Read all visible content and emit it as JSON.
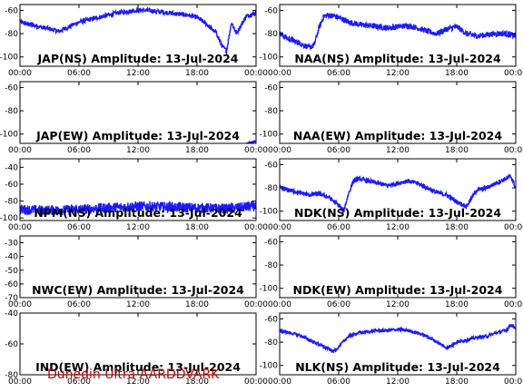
{
  "footer": "Dunedin Ultra AARDDVARK",
  "colors": {
    "series": "#1a1aff",
    "axis": "#000000",
    "footer": "#cc0000"
  },
  "chart_data": [
    {
      "type": "line",
      "title": "JAP(NS) Amplitude: 13-Jul-2024",
      "x_ticks": [
        "00:00",
        "06:00",
        "12:00",
        "18:00",
        "00:00"
      ],
      "xlim_hours": [
        0,
        24
      ],
      "ylim": [
        -108,
        -55
      ],
      "y_ticks": [
        -100,
        -80,
        -60
      ],
      "x": [
        0,
        1,
        2,
        3,
        4,
        5,
        6,
        7,
        8,
        9,
        10,
        11,
        12,
        13,
        14,
        15,
        16,
        17,
        18,
        19,
        20,
        20.5,
        21,
        21.5,
        22,
        23,
        24
      ],
      "y": [
        -70,
        -72,
        -74,
        -76,
        -78,
        -74,
        -70,
        -68,
        -66,
        -64,
        -62,
        -61,
        -60,
        -60,
        -61,
        -62,
        -63,
        -64,
        -66,
        -72,
        -80,
        -90,
        -95,
        -70,
        -80,
        -65,
        -62
      ],
      "band": 4
    },
    {
      "type": "line",
      "title": "NAA(NS) Amplitude: 13-Jul-2024",
      "x_ticks": [
        "00:00",
        "06:00",
        "12:00",
        "18:00",
        "00:00"
      ],
      "xlim_hours": [
        0,
        24
      ],
      "ylim": [
        -108,
        -55
      ],
      "y_ticks": [
        -100,
        -80,
        -60
      ],
      "x": [
        0,
        1,
        2,
        3,
        3.5,
        4,
        4.5,
        5,
        6,
        7,
        8,
        9,
        10,
        11,
        12,
        13,
        14,
        15,
        16,
        17,
        18,
        19,
        20,
        21,
        22,
        23,
        24
      ],
      "y": [
        -80,
        -85,
        -88,
        -92,
        -90,
        -75,
        -65,
        -64,
        -66,
        -70,
        -72,
        -73,
        -74,
        -75,
        -74,
        -73,
        -75,
        -78,
        -80,
        -76,
        -74,
        -80,
        -82,
        -81,
        -80,
        -80,
        -82
      ],
      "band": 5
    },
    {
      "type": "line",
      "title": "JAP(EW) Amplitude: 13-Jul-2024",
      "x_ticks": [
        "00:00",
        "06:00",
        "12:00",
        "18:00",
        "00:00"
      ],
      "xlim_hours": [
        0,
        24
      ],
      "ylim": [
        -108,
        -55
      ],
      "y_ticks": [
        -100,
        -80,
        -60
      ],
      "x": [
        23,
        24
      ],
      "y": [
        -108,
        -106
      ],
      "band": 1
    },
    {
      "type": "line",
      "title": "NAA(EW) Amplitude: 13-Jul-2024",
      "x_ticks": [
        "00:00",
        "06:00",
        "12:00",
        "18:00",
        "00:00"
      ],
      "xlim_hours": [
        0,
        24
      ],
      "ylim": [
        -108,
        -55
      ],
      "y_ticks": [
        -100,
        -80,
        -60
      ],
      "x": [],
      "y": [],
      "band": 0
    },
    {
      "type": "line",
      "title": "NPM(NS) Amplitude: 13-Jul-2024",
      "x_ticks": [
        "00:00",
        "06:00",
        "12:00",
        "18:00",
        "00:00"
      ],
      "xlim_hours": [
        0,
        24
      ],
      "ylim": [
        -103,
        -30
      ],
      "y_ticks": [
        -100,
        -80,
        -60,
        -40
      ],
      "x": [
        0,
        3,
        6,
        9,
        12,
        15,
        18,
        21,
        24
      ],
      "y": [
        -90,
        -91,
        -90,
        -88,
        -86,
        -87,
        -88,
        -89,
        -86
      ],
      "band": 12
    },
    {
      "type": "line",
      "title": "NDK(NS) Amplitude: 13-Jul-2024",
      "x_ticks": [
        "00:00",
        "06:00",
        "12:00",
        "18:00",
        "00:00"
      ],
      "xlim_hours": [
        0,
        24
      ],
      "ylim": [
        -108,
        -55
      ],
      "y_ticks": [
        -100,
        -80,
        -60
      ],
      "x": [
        0,
        1,
        2,
        3,
        4,
        5,
        6,
        6.5,
        7,
        7.5,
        8,
        9,
        10,
        11,
        12,
        13,
        14,
        15,
        16,
        17,
        18,
        19,
        20,
        21,
        22,
        23,
        23.5,
        24
      ],
      "y": [
        -80,
        -82,
        -84,
        -86,
        -85,
        -88,
        -95,
        -100,
        -85,
        -74,
        -72,
        -74,
        -76,
        -78,
        -76,
        -74,
        -76,
        -80,
        -84,
        -86,
        -92,
        -96,
        -82,
        -80,
        -76,
        -72,
        -70,
        -80
      ],
      "band": 4
    },
    {
      "type": "line",
      "title": "NWC(EW) Amplitude: 13-Jul-2024",
      "x_ticks": [
        "00:00",
        "06:00",
        "12:00",
        "18:00",
        "00:00"
      ],
      "xlim_hours": [
        0,
        24
      ],
      "ylim": [
        -70,
        -25
      ],
      "y_ticks": [
        -70,
        -60,
        -50,
        -40,
        -30
      ],
      "x": [],
      "y": [],
      "band": 0
    },
    {
      "type": "line",
      "title": "NDK(EW) Amplitude: 13-Jul-2024",
      "x_ticks": [
        "00:00",
        "06:00",
        "12:00",
        "18:00",
        "00:00"
      ],
      "xlim_hours": [
        0,
        24
      ],
      "ylim": [
        -108,
        -55
      ],
      "y_ticks": [
        -100,
        -80,
        -60
      ],
      "x": [],
      "y": [],
      "band": 0
    },
    {
      "type": "line",
      "title": "IND(EW) Amplitude: 13-Jul-2024",
      "x_ticks": [
        "00:00",
        "06:00",
        "12:00",
        "18:00",
        "00:00"
      ],
      "xlim_hours": [
        0,
        24
      ],
      "ylim": [
        -80,
        -40
      ],
      "y_ticks": [
        -80,
        -60,
        -40
      ],
      "x": [],
      "y": [],
      "band": 0
    },
    {
      "type": "line",
      "title": "NLK(NS) Amplitude: 13-Jul-2024",
      "x_ticks": [
        "00:00",
        "06:00",
        "12:00",
        "18:00",
        "00:00"
      ],
      "xlim_hours": [
        0,
        24
      ],
      "ylim": [
        -108,
        -55
      ],
      "y_ticks": [
        -100,
        -80,
        -60
      ],
      "x": [
        0,
        1,
        2,
        3,
        4,
        5,
        5.5,
        6,
        7,
        8,
        9,
        10,
        11,
        12,
        13,
        14,
        15,
        16,
        17,
        18,
        19,
        20,
        21,
        22,
        23,
        23.5,
        24
      ],
      "y": [
        -70,
        -72,
        -74,
        -78,
        -82,
        -86,
        -88,
        -84,
        -75,
        -72,
        -71,
        -70,
        -70,
        -69,
        -70,
        -72,
        -75,
        -80,
        -85,
        -80,
        -78,
        -76,
        -75,
        -72,
        -70,
        -65,
        -68
      ],
      "band": 3
    }
  ]
}
